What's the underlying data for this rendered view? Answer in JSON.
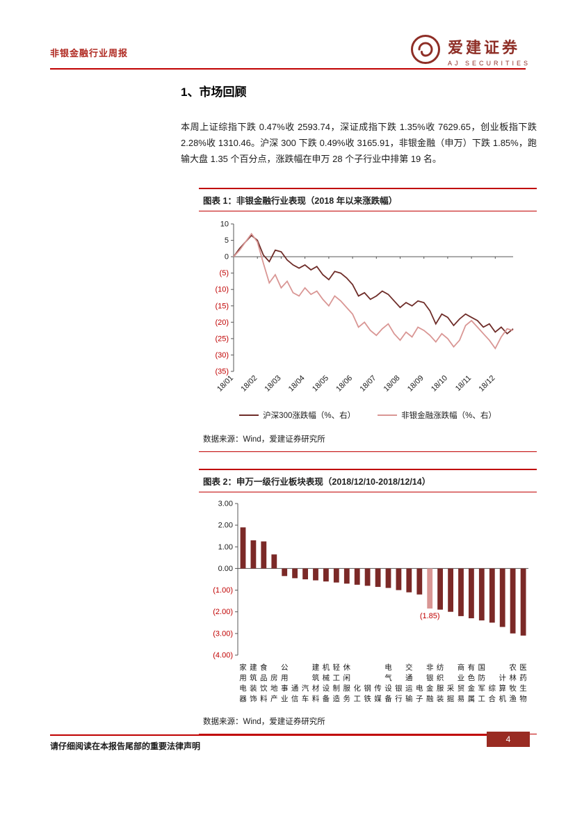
{
  "header": {
    "report_title": "非银金融行业周报",
    "brand_name": "爱建证券",
    "brand_sub": "AJ SECURITIES"
  },
  "section": {
    "title": "1、市场回顾",
    "paragraph": "本周上证综指下跌 0.47%收 2593.74，深证成指下跌 1.35%收 7629.65，创业板指下跌 2.28%收 1310.46。沪深 300 下跌 0.49%收 3165.91，非银金融（申万）下跌 1.85%，跑输大盘 1.35 个百分点，涨跌幅在申万 28 个子行业中排第 19 名。"
  },
  "figure1": {
    "title": "图表 1：非银金融行业表现（2018 年以来涨跌幅）",
    "source": "数据来源：Wind，爱建证券研究所"
  },
  "figure2": {
    "title": "图表 2：申万一级行业板块表现（2018/12/10-2018/12/14）",
    "source": "数据来源：Wind，爱建证券研究所"
  },
  "footer": {
    "disclaimer": "请仔细阅读在本报告尾部的重要法律声明",
    "page_number": "4"
  },
  "colors": {
    "accent": "#C00000",
    "dark_series": "#6E2C28",
    "light_series": "#D99694",
    "bar": "#7B2927",
    "highlight_bar": "#D99694",
    "page_badge": "#992B22"
  },
  "chart_data": [
    {
      "type": "line",
      "title": "非银金融行业表现（2018年以来涨跌幅）",
      "x_ticks": [
        "18/01",
        "18/02",
        "18/03",
        "18/04",
        "18/05",
        "18/06",
        "18/07",
        "18/08",
        "18/09",
        "18/10",
        "18/11",
        "18/12"
      ],
      "ylim": [
        -35,
        10
      ],
      "y_ticks": [
        10,
        5,
        0,
        -5,
        -10,
        -15,
        -20,
        -25,
        -30,
        -35
      ],
      "grid": false,
      "legend_position": "bottom",
      "series": [
        {
          "name": "沪深300涨跌幅（%、右）",
          "color": "#6E2C28",
          "values": [
            0,
            2.5,
            4.5,
            6.5,
            5.0,
            0.5,
            -1.5,
            2.0,
            1.5,
            -1.0,
            -2.5,
            -3.5,
            -2.5,
            -4.0,
            -3.0,
            -5.5,
            -7.0,
            -4.5,
            -5.0,
            -6.5,
            -8.5,
            -12.0,
            -11.0,
            -13.0,
            -12.0,
            -10.5,
            -11.5,
            -13.5,
            -15.5,
            -14.0,
            -15.0,
            -13.5,
            -14.0,
            -16.5,
            -20.5,
            -17.5,
            -18.5,
            -21.0,
            -19.0,
            -17.5,
            -18.5,
            -19.5,
            -21.5,
            -20.5,
            -23.0,
            -21.5,
            -23.5,
            -22.0
          ]
        },
        {
          "name": "非银金融涨跌幅（%、右）",
          "color": "#D99694",
          "values": [
            0,
            2.0,
            4.5,
            7.0,
            4.5,
            -2.0,
            -8.0,
            -5.5,
            -9.5,
            -7.5,
            -11.0,
            -12.0,
            -9.5,
            -11.5,
            -10.5,
            -13.0,
            -15.0,
            -12.0,
            -13.5,
            -15.5,
            -17.5,
            -21.5,
            -20.0,
            -22.5,
            -24.0,
            -22.0,
            -20.5,
            -23.5,
            -25.5,
            -23.0,
            -24.5,
            -21.5,
            -22.5,
            -24.0,
            -26.0,
            -23.5,
            -25.0,
            -27.5,
            -25.5,
            -21.0,
            -19.5,
            -21.5,
            -23.5,
            -25.5,
            -28.0,
            -24.5,
            -22.0,
            -22.5
          ]
        }
      ]
    },
    {
      "type": "bar",
      "title": "申万一级行业板块表现（2018/12/10-2018/12/14）",
      "categories": [
        "家用电器",
        "建筑装饰",
        "食品饮料",
        "房地产",
        "公用事业",
        "通信",
        "汽车",
        "建筑材料",
        "机械设备",
        "轻工制造",
        "休闲服务",
        "化工",
        "钢铁",
        "传媒",
        "电气设备",
        "银行",
        "交通运输",
        "电子",
        "非银金融",
        "纺织服装",
        "采掘",
        "商业贸易",
        "有色金属",
        "国防军工",
        "综合",
        "计算机",
        "农林牧渔",
        "医药生物"
      ],
      "values": [
        1.9,
        1.3,
        1.25,
        0.65,
        -0.35,
        -0.45,
        -0.5,
        -0.55,
        -0.6,
        -0.65,
        -0.7,
        -0.75,
        -0.8,
        -0.85,
        -0.9,
        -1.0,
        -1.1,
        -1.2,
        -1.85,
        -1.9,
        -2.0,
        -2.2,
        -2.3,
        -2.4,
        -2.5,
        -2.7,
        -3.0,
        -3.1
      ],
      "ylim": [
        -4,
        3
      ],
      "y_ticks": [
        3,
        2,
        1,
        0,
        -1,
        -2,
        -3,
        -4
      ],
      "grid": false,
      "bar_color": "#7B2927",
      "highlight_category": "非银金融",
      "highlight_color": "#D99694",
      "annotation": {
        "text": "(1.85)",
        "category": "非银金融"
      }
    }
  ]
}
